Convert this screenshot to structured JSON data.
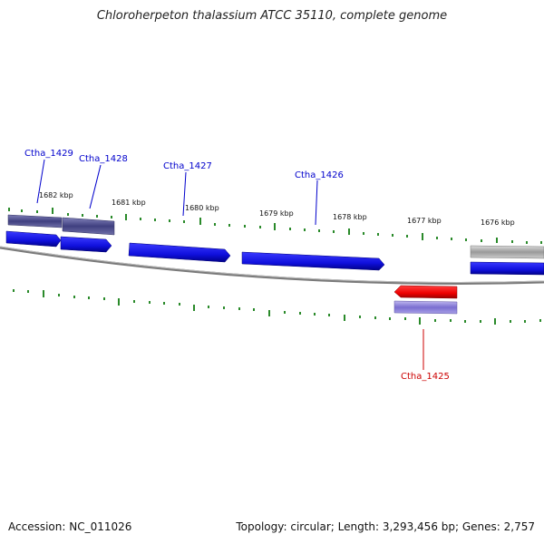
{
  "title": "Chloroherpeton thalassium ATCC 35110, complete genome",
  "footer": {
    "accession": "Accession: NC_011026",
    "summary": "Topology: circular; Length: 3,293,456 bp; Genes: 2,757"
  },
  "scale_labels": [
    "1682 kbp",
    "1681 kbp",
    "1680 kbp",
    "1679 kbp",
    "1678 kbp",
    "1677 kbp",
    "1676 kbp"
  ],
  "genes": [
    {
      "label": "Ctha_1429",
      "strand": "forward",
      "color": "#0000cc"
    },
    {
      "label": "Ctha_1428",
      "strand": "forward",
      "color": "#0000cc"
    },
    {
      "label": "Ctha_1427",
      "strand": "forward",
      "color": "#0000cc"
    },
    {
      "label": "Ctha_1426",
      "strand": "forward",
      "color": "#0000cc"
    },
    {
      "label": "Ctha_1425",
      "strand": "reverse",
      "color": "#cc0000"
    }
  ],
  "colors": {
    "forward_gene": "#1a1aee",
    "reverse_gene": "#ee0000",
    "cds_feature": "#4a4a8a",
    "reverse_cds": "#8a7ed8",
    "other_feature": "#aaaaaa",
    "backbone": "#888888",
    "ticks": "#2a8a2a"
  }
}
